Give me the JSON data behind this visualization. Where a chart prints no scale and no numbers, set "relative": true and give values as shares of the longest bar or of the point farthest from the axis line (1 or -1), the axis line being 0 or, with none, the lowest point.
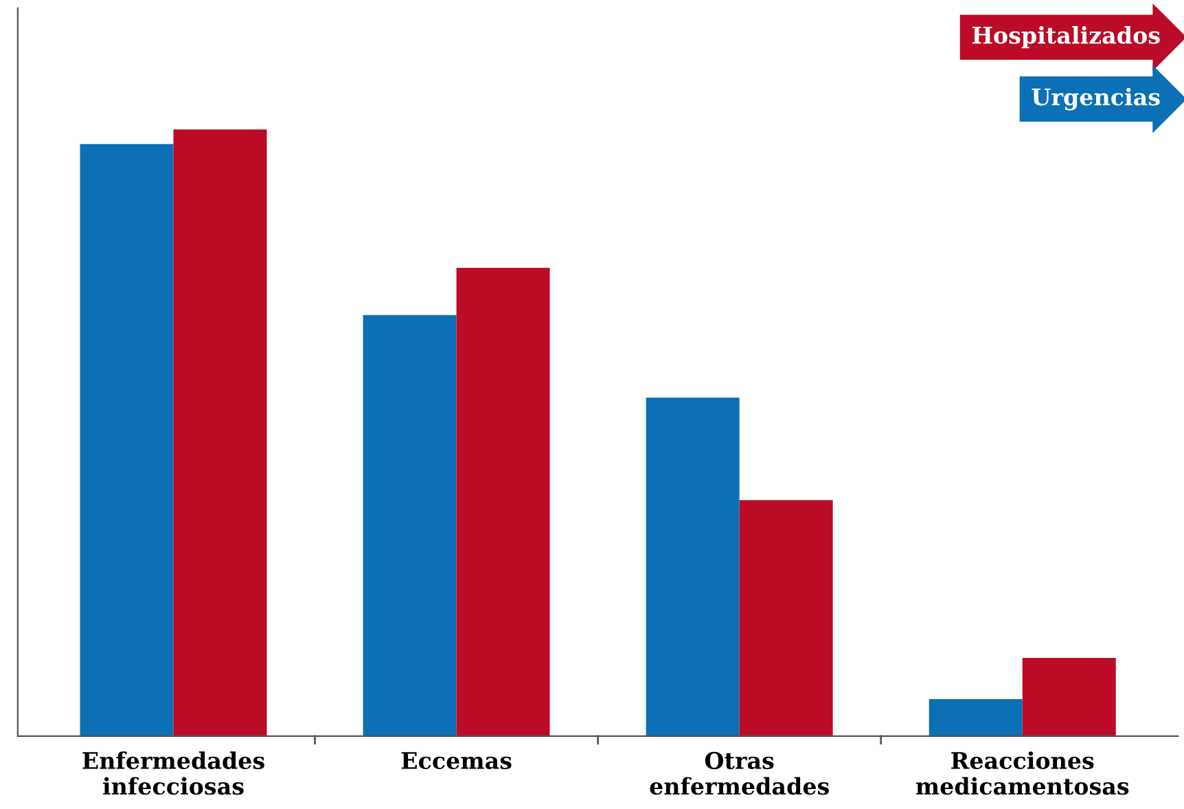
{
  "chart_data": {
    "type": "bar",
    "relative": true,
    "categories": [
      "Enfermedades\ninfecciosas",
      "Eccemas",
      "Otras\nenfermedades",
      "Reacciones\nmedicamentosas"
    ],
    "series": [
      {
        "name": "Urgencias",
        "color": "#0b70b5",
        "values": [
          0.976,
          0.694,
          0.558,
          0.061
        ]
      },
      {
        "name": "Hospitalizados",
        "color": "#bc0b27",
        "values": [
          1,
          0.772,
          0.389,
          0.129
        ]
      }
    ],
    "legend": "top right",
    "grid": false
  }
}
